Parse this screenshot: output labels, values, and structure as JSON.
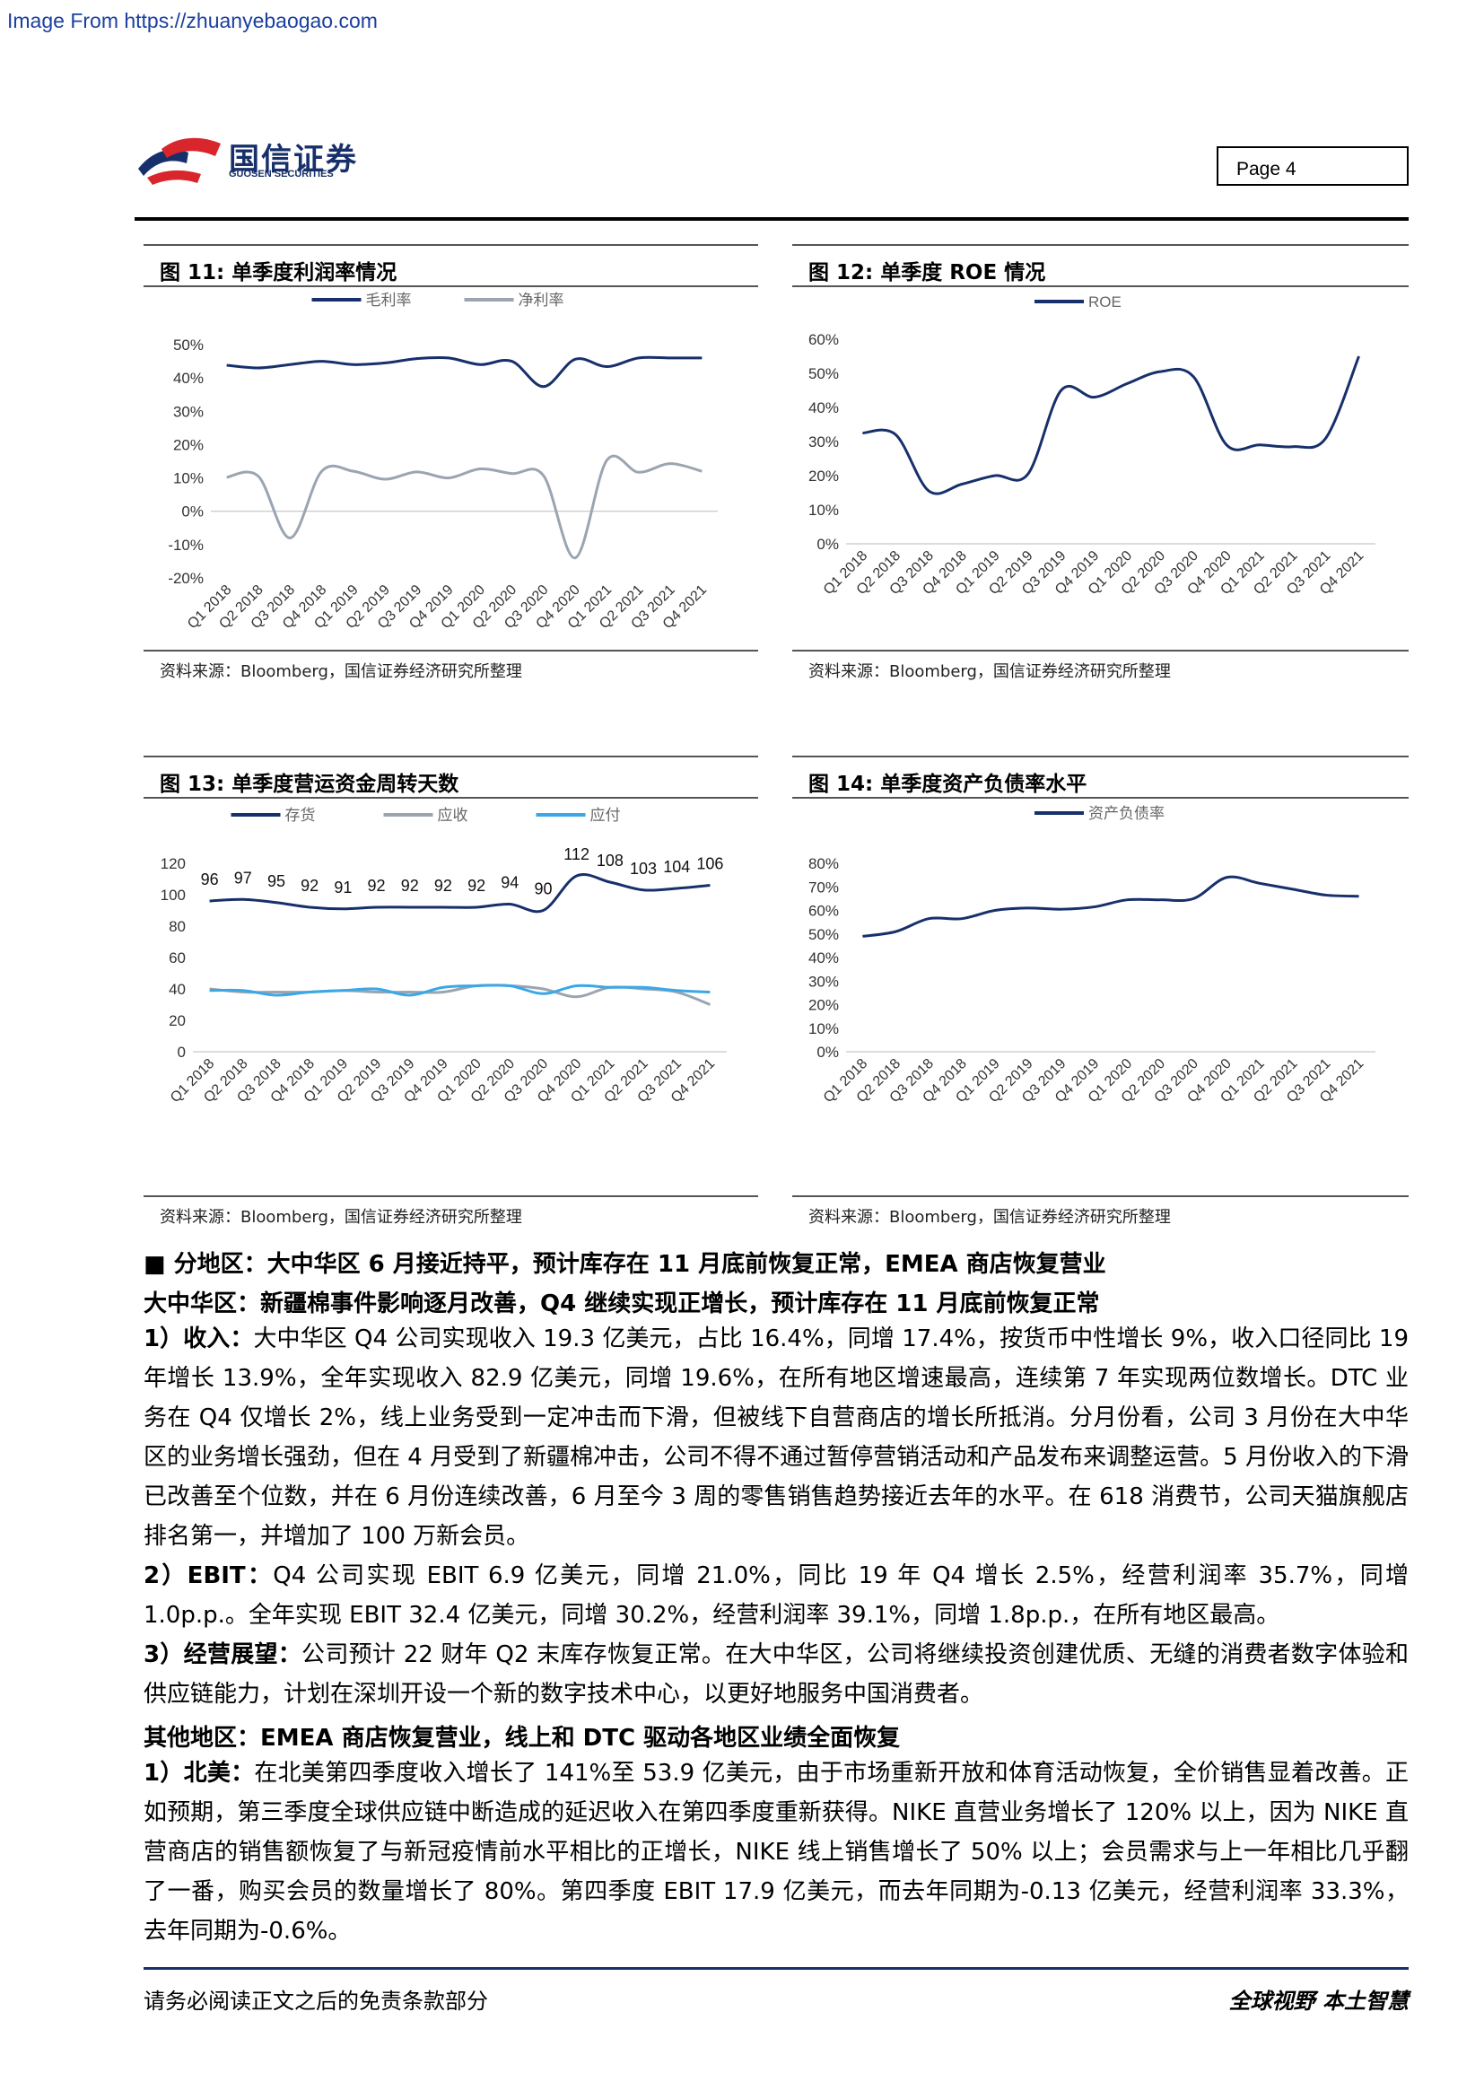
{
  "source_url": "Image From https://zhuanyebaogao.com",
  "brand": {
    "cn": "国信证券",
    "en": "GUOSEN SECURITIES"
  },
  "page_label": "Page  4",
  "colors": {
    "navy": "#17306b",
    "gray": "#9aa5b1",
    "blue": "#3aa7e6"
  },
  "fig11": {
    "title": "图  11:  单季度利润率情况",
    "source": "资料来源：Bloomberg，国信证券经济研究所整理",
    "chart_data": {
      "type": "line",
      "categories": [
        "Q1 2018",
        "Q2 2018",
        "Q3 2018",
        "Q4 2018",
        "Q1 2019",
        "Q2 2019",
        "Q3 2019",
        "Q4 2019",
        "Q1 2020",
        "Q2 2020",
        "Q3 2020",
        "Q4 2020",
        "Q1 2021",
        "Q2 2021",
        "Q3 2021",
        "Q4 2021"
      ],
      "series": [
        {
          "name": "毛利率",
          "values": [
            43.8,
            43.0,
            44.0,
            45.0,
            44.0,
            44.5,
            45.8,
            46.0,
            44.0,
            45.0,
            37.4,
            45.6,
            43.4,
            46.0,
            46.0,
            46.0
          ]
        },
        {
          "name": "净利率",
          "values": [
            10.2,
            10.5,
            -8.0,
            12.0,
            12.0,
            9.6,
            11.8,
            10.0,
            12.7,
            11.3,
            10.7,
            -14.0,
            15.3,
            11.7,
            14.3,
            12.0
          ]
        }
      ],
      "yticks": [
        "50%",
        "40%",
        "30%",
        "20%",
        "10%",
        "0%",
        "-10%",
        "-20%"
      ],
      "ylim": [
        -20,
        50
      ]
    }
  },
  "fig12": {
    "title": "图  12:  单季度 ROE 情况",
    "source": "资料来源：Bloomberg，国信证券经济研究所整理",
    "chart_data": {
      "type": "line",
      "categories": [
        "Q1 2018",
        "Q2 2018",
        "Q3 2018",
        "Q4 2018",
        "Q1 2019",
        "Q2 2019",
        "Q3 2019",
        "Q4 2019",
        "Q1 2020",
        "Q2 2020",
        "Q3 2020",
        "Q4 2020",
        "Q1 2021",
        "Q2 2021",
        "Q3 2021",
        "Q4 2021"
      ],
      "series": [
        {
          "name": "ROE",
          "values": [
            32.5,
            32.0,
            15.5,
            17.5,
            20.0,
            20.5,
            45.0,
            43.0,
            47.0,
            50.5,
            49.0,
            29.0,
            29.0,
            28.5,
            31.0,
            55.0
          ]
        }
      ],
      "yticks": [
        "60%",
        "50%",
        "40%",
        "30%",
        "20%",
        "10%",
        "0%"
      ],
      "ylim": [
        0,
        60
      ]
    }
  },
  "fig13": {
    "title": "图  13:  单季度营运资金周转天数",
    "source": "资料来源：Bloomberg，国信证券经济研究所整理",
    "chart_data": {
      "type": "line",
      "categories": [
        "Q1 2018",
        "Q2 2018",
        "Q3 2018",
        "Q4 2018",
        "Q1 2019",
        "Q2 2019",
        "Q3 2019",
        "Q4 2019",
        "Q1 2020",
        "Q2 2020",
        "Q3 2020",
        "Q4 2020",
        "Q1 2021",
        "Q2 2021",
        "Q3 2021",
        "Q4 2021"
      ],
      "series": [
        {
          "name": "存货",
          "values": [
            96,
            97,
            95,
            92,
            91,
            92,
            92,
            92,
            92,
            94,
            90,
            112,
            108,
            103,
            104,
            106
          ]
        },
        {
          "name": "应收",
          "values": [
            40,
            38,
            38,
            38,
            39,
            38,
            38,
            38,
            42,
            42,
            40,
            35,
            41,
            40,
            38,
            30
          ]
        },
        {
          "name": "应付",
          "values": [
            39,
            39,
            36,
            38,
            39,
            40,
            36,
            41,
            42,
            42,
            37,
            42,
            41,
            41,
            39,
            38
          ]
        }
      ],
      "data_labels": [
        "96",
        "97",
        "95",
        "92",
        "91",
        "92",
        "92",
        "92",
        "92",
        "94",
        "90",
        "112",
        "108",
        "103",
        "104",
        "106"
      ],
      "yticks": [
        "120",
        "100",
        "80",
        "60",
        "40",
        "20",
        "0"
      ],
      "ylim": [
        0,
        120
      ]
    }
  },
  "fig14": {
    "title": "图  14:  单季度资产负债率水平",
    "source": "资料来源：Bloomberg，国信证券经济研究所整理",
    "chart_data": {
      "type": "line",
      "categories": [
        "Q1 2018",
        "Q2 2018",
        "Q3 2018",
        "Q4 2018",
        "Q1 2019",
        "Q2 2019",
        "Q3 2019",
        "Q4 2019",
        "Q1 2020",
        "Q2 2020",
        "Q3 2020",
        "Q4 2020",
        "Q1 2021",
        "Q2 2021",
        "Q3 2021",
        "Q4 2021"
      ],
      "series": [
        {
          "name": "资产负债率",
          "values": [
            49,
            51,
            56.5,
            56.5,
            60,
            61,
            60.5,
            61.5,
            64.5,
            64.5,
            65,
            74,
            71.5,
            69,
            66.5,
            66
          ]
        }
      ],
      "yticks": [
        "80%",
        "70%",
        "60%",
        "50%",
        "40%",
        "30%",
        "20%",
        "10%",
        "0%"
      ],
      "ylim": [
        0,
        80
      ]
    }
  },
  "text": {
    "section_heading": "■    分地区：大中华区 6 月接近持平，预计库存在 11 月底前恢复正常，EMEA 商店恢复营业",
    "gc_heading": "大中华区：新疆棉事件影响逐月改善，Q4 继续实现正增长，预计库存在 11 月底前恢复正常",
    "p1_label": "1）收入：",
    "p1": "大中华区 Q4 公司实现收入 19.3 亿美元，占比 16.4%，同增 17.4%，按货币中性增长 9%，收入口径同比 19 年增长 13.9%，全年实现收入 82.9 亿美元，同增 19.6%，在所有地区增速最高，连续第 7 年实现两位数增长。DTC 业务在 Q4 仅增长 2%，线上业务受到一定冲击而下滑，但被线下自营商店的增长所抵消。分月份看，公司 3 月份在大中华区的业务增长强劲，但在 4 月受到了新疆棉冲击，公司不得不通过暂停营销活动和产品发布来调整运营。5 月份收入的下滑已改善至个位数，并在 6 月份连续改善，6 月至今 3 周的零售销售趋势接近去年的水平。在 618 消费节，公司天猫旗舰店排名第一，并增加了 100 万新会员。",
    "p2_label": "2）EBIT：",
    "p2": "Q4 公司实现 EBIT 6.9 亿美元，同增 21.0%，同比 19 年 Q4 增长 2.5%，经营利润率 35.7%，同增 1.0p.p.。全年实现 EBIT 32.4 亿美元，同增 30.2%，经营利润率 39.1%，同增 1.8p.p.，在所有地区最高。",
    "p3_label": "3）经营展望：",
    "p3": "公司预计 22 财年 Q2 末库存恢复正常。在大中华区，公司将继续投资创建优质、无缝的消费者数字体验和供应链能力，计划在深圳开设一个新的数字技术中心，以更好地服务中国消费者。",
    "other_heading": "其他地区：EMEA 商店恢复营业，线上和 DTC 驱动各地区业绩全面恢复",
    "p4_label": "1）北美：",
    "p4": "在北美第四季度收入增长了 141%至 53.9 亿美元，由于市场重新开放和体育活动恢复，全价销售显着改善。正如预期，第三季度全球供应链中断造成的延迟收入在第四季度重新获得。NIKE 直营业务增长了 120% 以上，因为 NIKE 直营商店的销售额恢复了与新冠疫情前水平相比的正增长，NIKE 线上销售增长了 50% 以上；会员需求与上一年相比几乎翻了一番，购买会员的数量增长了 80%。第四季度 EBIT 17.9 亿美元，而去年同期为-0.13 亿美元，经营利润率 33.3%，去年同期为-0.6%。"
  },
  "footer": {
    "left": "请务必阅读正文之后的免责条款部分",
    "right": "全球视野  本土智慧"
  }
}
